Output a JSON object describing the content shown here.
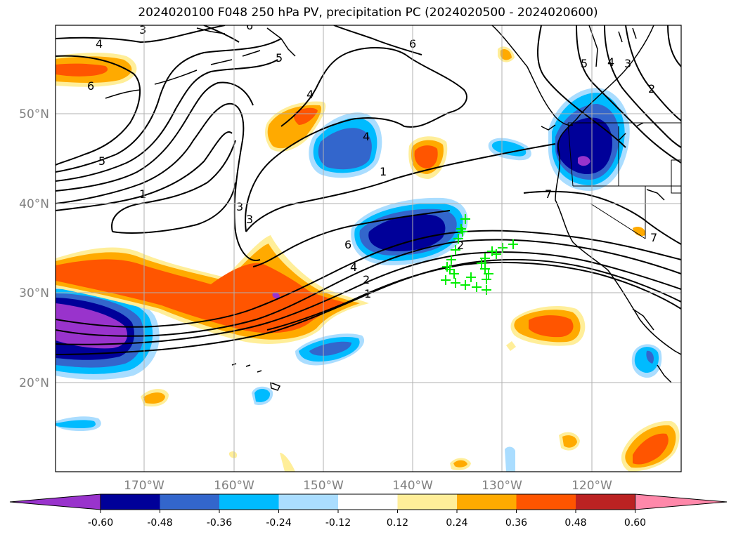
{
  "title": "2024020100 F048 250 hPa PV, precipitation PC (2024020500 - 2024020600)",
  "lat_labels": [
    "50°N",
    "40°N",
    "30°N",
    "20°N"
  ],
  "lon_labels": [
    "170°W",
    "160°W",
    "150°W",
    "140°W",
    "130°W",
    "120°W"
  ],
  "colorbar": {
    "ticks": [
      "-0.60",
      "-0.48",
      "-0.36",
      "-0.24",
      "-0.12",
      "0.12",
      "0.24",
      "0.36",
      "0.48",
      "0.60"
    ],
    "colors": [
      "#9933cc",
      "#000099",
      "#3366cc",
      "#00bbff",
      "#aaddff",
      "#ffffff",
      "#ffee99",
      "#ffaa00",
      "#ff5500",
      "#bb2222",
      "#ff88aa"
    ]
  },
  "pv_contour_labels": [
    "3",
    "4",
    "5",
    "6",
    "1",
    "6",
    "5",
    "4",
    "3",
    "6",
    "2",
    "4",
    "6",
    "4",
    "1",
    "3",
    "2",
    "1",
    "7",
    "7",
    "5",
    "4",
    "3",
    "2"
  ],
  "marker_color": "#00ee00",
  "marker_count": 24
}
